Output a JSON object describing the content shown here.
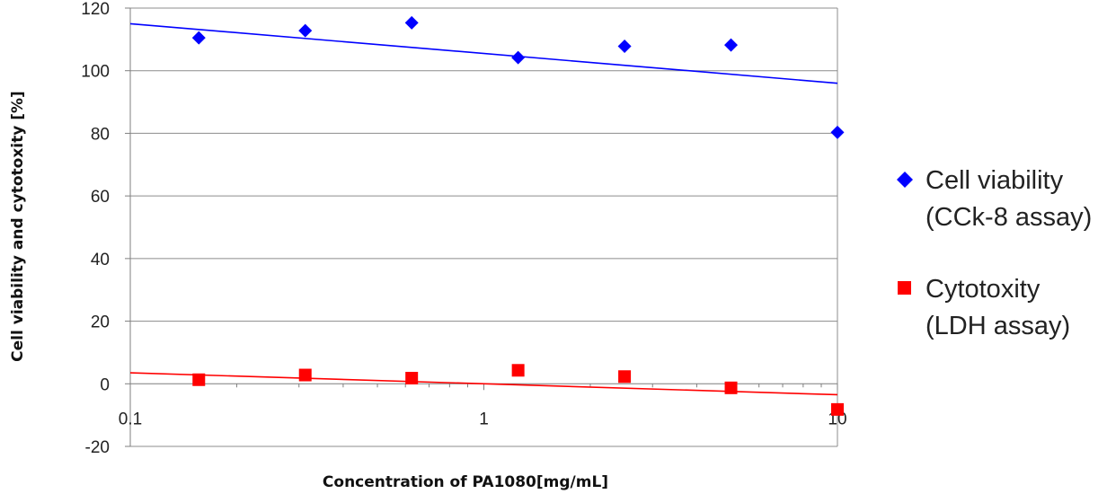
{
  "chart_data": {
    "type": "scatter",
    "xlabel": "Concentration of PA1080[mg/mL]",
    "ylabel": "Cell viability and cytotoxity [%]",
    "x_scale": "log",
    "xlim": [
      0.1,
      10
    ],
    "ylim": [
      -20,
      120
    ],
    "x_ticks": [
      "0.1",
      "1",
      "10"
    ],
    "y_ticks": [
      "-20",
      "0",
      "20",
      "40",
      "60",
      "80",
      "100",
      "120"
    ],
    "grid": "horizontal",
    "legend_position": "right",
    "x": [
      0.15625,
      0.3125,
      0.625,
      1.25,
      2.5,
      5,
      10
    ],
    "series": [
      {
        "name_line1": "Cell viability",
        "name_line2": "(CCk-8 assay)",
        "marker": "diamond",
        "color": "#0000ff",
        "values": [
          110.5,
          112.8,
          115.3,
          104.2,
          107.8,
          108.2,
          80.3
        ],
        "trendline": {
          "type": "log",
          "start": [
            0.1,
            115
          ],
          "end": [
            10,
            96
          ]
        }
      },
      {
        "name_line1": "Cytotoxity",
        "name_line2": "(LDH assay)",
        "marker": "square",
        "color": "#ff0000",
        "values": [
          1.3,
          2.8,
          1.8,
          4.3,
          2.3,
          -1.3,
          -8.2
        ],
        "trendline": {
          "type": "log",
          "start": [
            0.1,
            3.5
          ],
          "end": [
            10,
            -3.5
          ]
        }
      }
    ]
  }
}
